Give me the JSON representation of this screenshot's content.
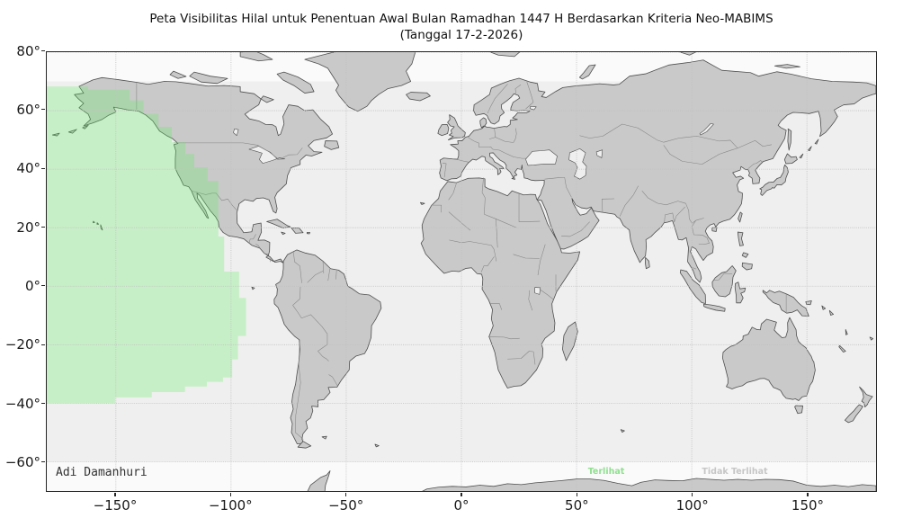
{
  "title": {
    "line1": "Peta Visibilitas Hilal untuk Penentuan Awal Bulan Ramadhan 1447 H Berdasarkan Kriteria Neo-MABIMS",
    "line2": "(Tanggal 17-2-2026)"
  },
  "axes": {
    "xlim": [
      -180,
      180
    ],
    "ylim": [
      -70,
      80
    ],
    "x_ticks": {
      "values": [
        -150,
        -100,
        -50,
        0,
        50,
        100,
        150
      ],
      "labels": [
        "−150°",
        "−100°",
        "−50°",
        "0°",
        "50°",
        "100°",
        "150°"
      ]
    },
    "y_ticks": {
      "values": [
        80,
        60,
        40,
        20,
        0,
        -20,
        -40,
        -60
      ],
      "labels": [
        "80°",
        "60°",
        "40°",
        "20°",
        "0°",
        "−20°",
        "−40°",
        "−60°"
      ]
    },
    "grid": "dashed"
  },
  "annotations": {
    "author": "Adi Damanhuri",
    "visible": "Terlihat",
    "not_visible": "Tidak Terlihat"
  },
  "colors": {
    "ocean": "#efefef",
    "polar_band": "#fafafa",
    "land": "#c9c9c9",
    "coast": "#4f4f4f",
    "country_border": "#858585",
    "grid": "#c0c0c0",
    "spine": "#262626",
    "visible_fill": "#62ef62",
    "visible_fill_opacity": 0.28,
    "visible_text": "#8fe08f",
    "not_visible_text": "#c6c6c6",
    "author_text": "#333333",
    "tick_text": "#1a1a1a",
    "title_text": "#111111"
  },
  "map_data": {
    "description": "Hilal visibility region (Neo-MABIMS criteria) as lon/lat polygon",
    "visibility_region_lonlat": [
      [
        -180,
        68.3
      ],
      [
        -162,
        68.3
      ],
      [
        -162,
        67.2
      ],
      [
        -144,
        67.2
      ],
      [
        -144,
        63.5
      ],
      [
        -138,
        63.5
      ],
      [
        -138,
        59
      ],
      [
        -131.5,
        59
      ],
      [
        -131.5,
        54.5
      ],
      [
        -125.7,
        54.5
      ],
      [
        -125.7,
        49.2
      ],
      [
        -119.9,
        49.2
      ],
      [
        -119.9,
        45.2
      ],
      [
        -116,
        45.2
      ],
      [
        -116,
        40.6
      ],
      [
        -110.2,
        40.6
      ],
      [
        -110.2,
        36
      ],
      [
        -105.5,
        36
      ],
      [
        -105.5,
        17
      ],
      [
        -103,
        17
      ],
      [
        -103,
        5
      ],
      [
        -96.5,
        5
      ],
      [
        -96.5,
        -4
      ],
      [
        -93.5,
        -4
      ],
      [
        -93.5,
        -17
      ],
      [
        -97,
        -17
      ],
      [
        -97,
        -25
      ],
      [
        -99.5,
        -25
      ],
      [
        -99.5,
        -31.2
      ],
      [
        -103.5,
        -31.2
      ],
      [
        -103.5,
        -32.7
      ],
      [
        -110.5,
        -32.7
      ],
      [
        -110.5,
        -34.3
      ],
      [
        -120,
        -34.3
      ],
      [
        -120,
        -36.2
      ],
      [
        -134.4,
        -36.2
      ],
      [
        -134.4,
        -38
      ],
      [
        -150.4,
        -38
      ],
      [
        -150.4,
        -40
      ],
      [
        -180,
        -40
      ]
    ]
  }
}
